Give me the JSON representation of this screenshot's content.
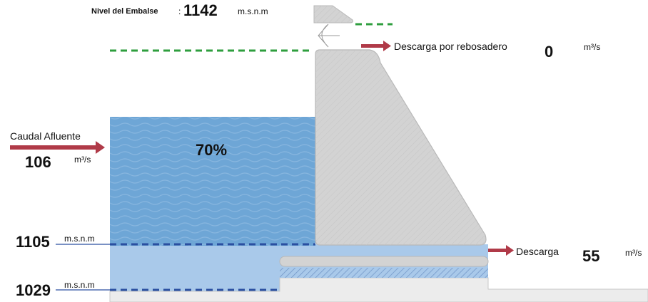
{
  "nivel_embalse": {
    "label": "Nivel del Embalse",
    "separator": ":",
    "value": "1142",
    "unit": "m.s.n.m"
  },
  "rebosadero": {
    "label": "Descarga por rebosadero",
    "value": "0",
    "unit": "m³/s"
  },
  "caudal_afluente": {
    "label": "Caudal Afluente",
    "value": "106",
    "unit": "m³/s"
  },
  "reservoir": {
    "percent": "70%",
    "fill_fraction": 0.7
  },
  "level_upper": {
    "value": "1105",
    "unit": "m.s.n.m"
  },
  "level_lower": {
    "value": "1029",
    "unit": "m.s.n.m"
  },
  "descarga": {
    "label": "Descarga",
    "value": "55",
    "unit": "m³/s"
  },
  "colors": {
    "water_dark": "#6ea6d6",
    "water_light": "#a9c9ea",
    "dam": "#d3d3d3",
    "dam_edge": "#b8b8b8",
    "arrow": "#b03a48",
    "green_dash": "#2e9e3e",
    "blue_dash": "#2a4fa0",
    "hatch": "#7a9fcc"
  }
}
